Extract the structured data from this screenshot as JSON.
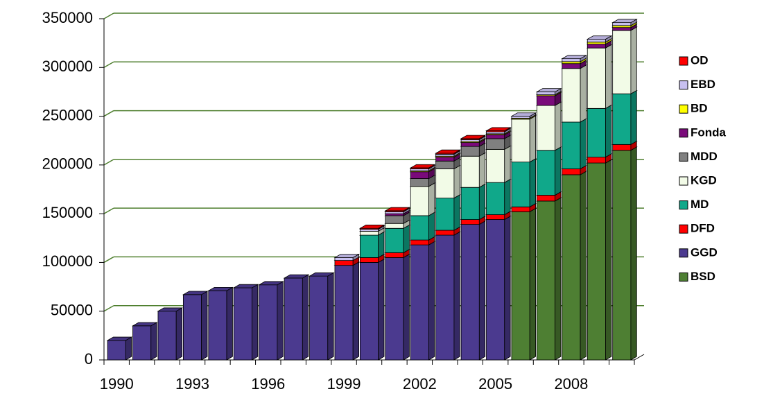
{
  "chart_data": {
    "type": "bar3d_stacked",
    "categories": [
      "1990",
      null,
      null,
      "1993",
      null,
      null,
      "1996",
      null,
      null,
      "1999",
      null,
      null,
      "2002",
      null,
      null,
      "2005",
      null,
      null,
      "2008",
      null,
      null
    ],
    "series": [
      {
        "name": "BSD",
        "color": "#4e7f33",
        "values": [
          0,
          0,
          0,
          0,
          0,
          0,
          0,
          0,
          0,
          0,
          0,
          0,
          0,
          0,
          0,
          0,
          152000,
          163000,
          190000,
          202000,
          215000
        ]
      },
      {
        "name": "GGD",
        "color": "#4b3a8f",
        "values": [
          20000,
          35000,
          50000,
          67000,
          71000,
          74000,
          77000,
          84000,
          86000,
          97000,
          100000,
          105000,
          118000,
          128000,
          139000,
          144000,
          0,
          0,
          0,
          0,
          0
        ]
      },
      {
        "name": "DFD",
        "color": "#ff0000",
        "values": [
          0,
          0,
          0,
          0,
          0,
          0,
          0,
          0,
          0,
          5000,
          5000,
          5000,
          5000,
          5000,
          5000,
          5000,
          5000,
          6000,
          6000,
          6000,
          6000
        ]
      },
      {
        "name": "MD",
        "color": "#10a88a",
        "values": [
          0,
          0,
          0,
          0,
          0,
          0,
          0,
          0,
          0,
          0,
          23000,
          25000,
          25000,
          33000,
          33000,
          33000,
          46000,
          46000,
          48000,
          50000,
          52000
        ]
      },
      {
        "name": "KGD",
        "color": "#f2fbe7",
        "values": [
          0,
          0,
          0,
          0,
          0,
          0,
          0,
          0,
          0,
          0,
          4000,
          5000,
          30000,
          30000,
          32000,
          34000,
          44000,
          46000,
          55000,
          62000,
          65000
        ]
      },
      {
        "name": "MDD",
        "color": "#808080",
        "values": [
          0,
          0,
          0,
          0,
          0,
          0,
          0,
          0,
          0,
          0,
          0,
          8000,
          8000,
          8000,
          10000,
          11000,
          0,
          0,
          0,
          0,
          0
        ]
      },
      {
        "name": "Fonda",
        "color": "#7a0a7a",
        "values": [
          0,
          0,
          0,
          0,
          0,
          0,
          0,
          0,
          0,
          0,
          0,
          2000,
          7000,
          4000,
          4000,
          4000,
          0,
          10000,
          5000,
          4000,
          3000
        ]
      },
      {
        "name": "BD",
        "color": "#ffff00",
        "values": [
          0,
          0,
          0,
          0,
          0,
          0,
          0,
          0,
          0,
          0,
          0,
          0,
          1000,
          1000,
          1000,
          1000,
          1000,
          1000,
          2000,
          2000,
          2000
        ]
      },
      {
        "name": "EBD",
        "color": "#c8c0f0",
        "values": [
          0,
          0,
          0,
          0,
          0,
          0,
          0,
          0,
          0,
          3000,
          2000,
          2000,
          2000,
          2000,
          2000,
          2000,
          2000,
          3000,
          3000,
          3000,
          3000
        ]
      },
      {
        "name": "OD",
        "color": "#ff0000",
        "values": [
          0,
          0,
          0,
          0,
          0,
          0,
          0,
          0,
          0,
          0,
          1000,
          1000,
          1000,
          1000,
          1000,
          1000,
          0,
          0,
          0,
          0,
          0
        ]
      }
    ],
    "ylim": [
      0,
      350000
    ],
    "yticks": [
      0,
      50000,
      100000,
      150000,
      200000,
      250000,
      300000,
      350000
    ],
    "grid": true,
    "grid_color": "#4f7f2f",
    "legend": "right"
  }
}
